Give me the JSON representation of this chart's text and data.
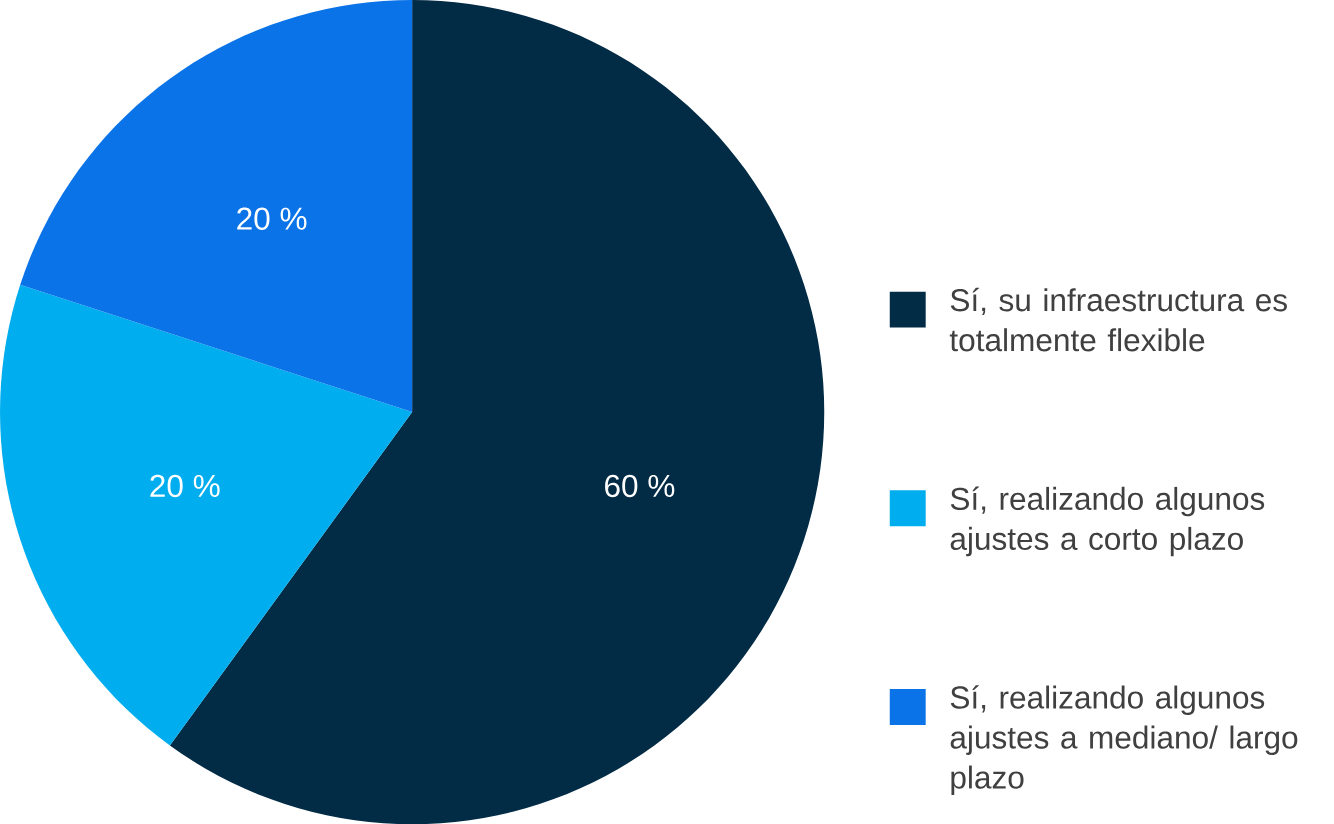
{
  "chart_data": {
    "type": "pie",
    "categories": [
      "Sí, su infraestructura es totalmente flexible",
      "Sí, realizando algunos ajustes a corto plazo",
      "Sí, realizando algunos ajustes a mediano/ largo plazo"
    ],
    "values": [
      60,
      20,
      20
    ],
    "colors": [
      "#022b45",
      "#00aeef",
      "#0a73e8"
    ],
    "value_labels": [
      "60 %",
      "20 %",
      "20 %"
    ],
    "legend": "right"
  }
}
